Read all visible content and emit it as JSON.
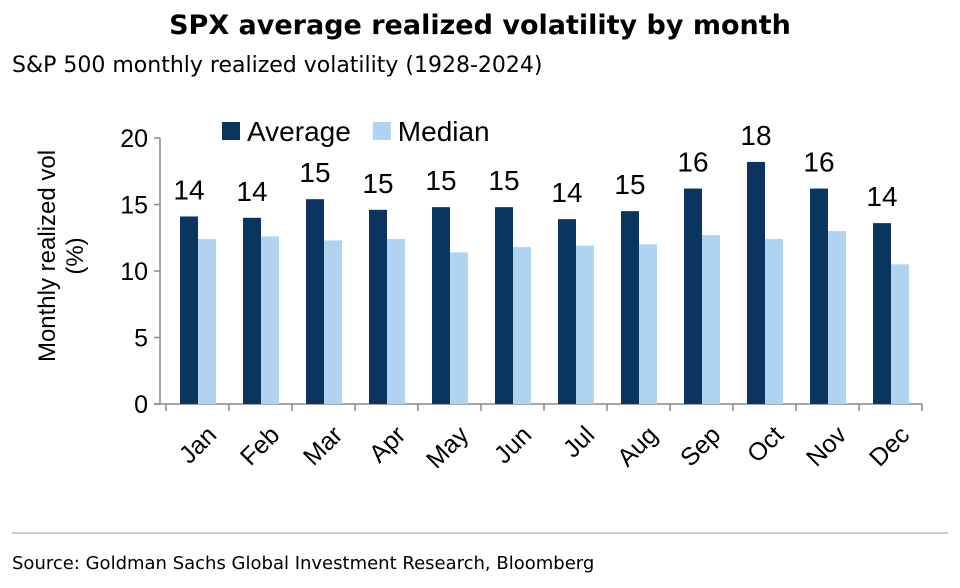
{
  "chart_data": {
    "type": "bar",
    "title": "SPX average realized volatility by month",
    "subtitle": "S&P 500 monthly realized volatility (1928-2024)",
    "ylabel_line1": "Monthly realized vol",
    "ylabel_line2": "(%)",
    "xlabel": "",
    "ylim": [
      0,
      20
    ],
    "yticks": [
      0,
      5,
      10,
      15,
      20
    ],
    "legend_position": "top-left",
    "categories": [
      "Jan",
      "Feb",
      "Mar",
      "Apr",
      "May",
      "Jun",
      "Jul",
      "Aug",
      "Sep",
      "Oct",
      "Nov",
      "Dec"
    ],
    "series": [
      {
        "name": "Average",
        "color": "#0b3561",
        "values": [
          14.1,
          14.0,
          15.4,
          14.6,
          14.8,
          14.8,
          13.9,
          14.5,
          16.2,
          18.2,
          16.2,
          13.6
        ],
        "data_labels": [
          "14",
          "14",
          "15",
          "15",
          "15",
          "15",
          "14",
          "15",
          "16",
          "18",
          "16",
          "14"
        ]
      },
      {
        "name": "Median",
        "color": "#afd3f0",
        "values": [
          12.4,
          12.6,
          12.3,
          12.4,
          11.4,
          11.8,
          11.9,
          12.0,
          12.7,
          12.4,
          13.0,
          10.5
        ]
      }
    ]
  },
  "footer": {
    "source": "Source: Goldman Sachs Global Investment Research, Bloomberg"
  }
}
